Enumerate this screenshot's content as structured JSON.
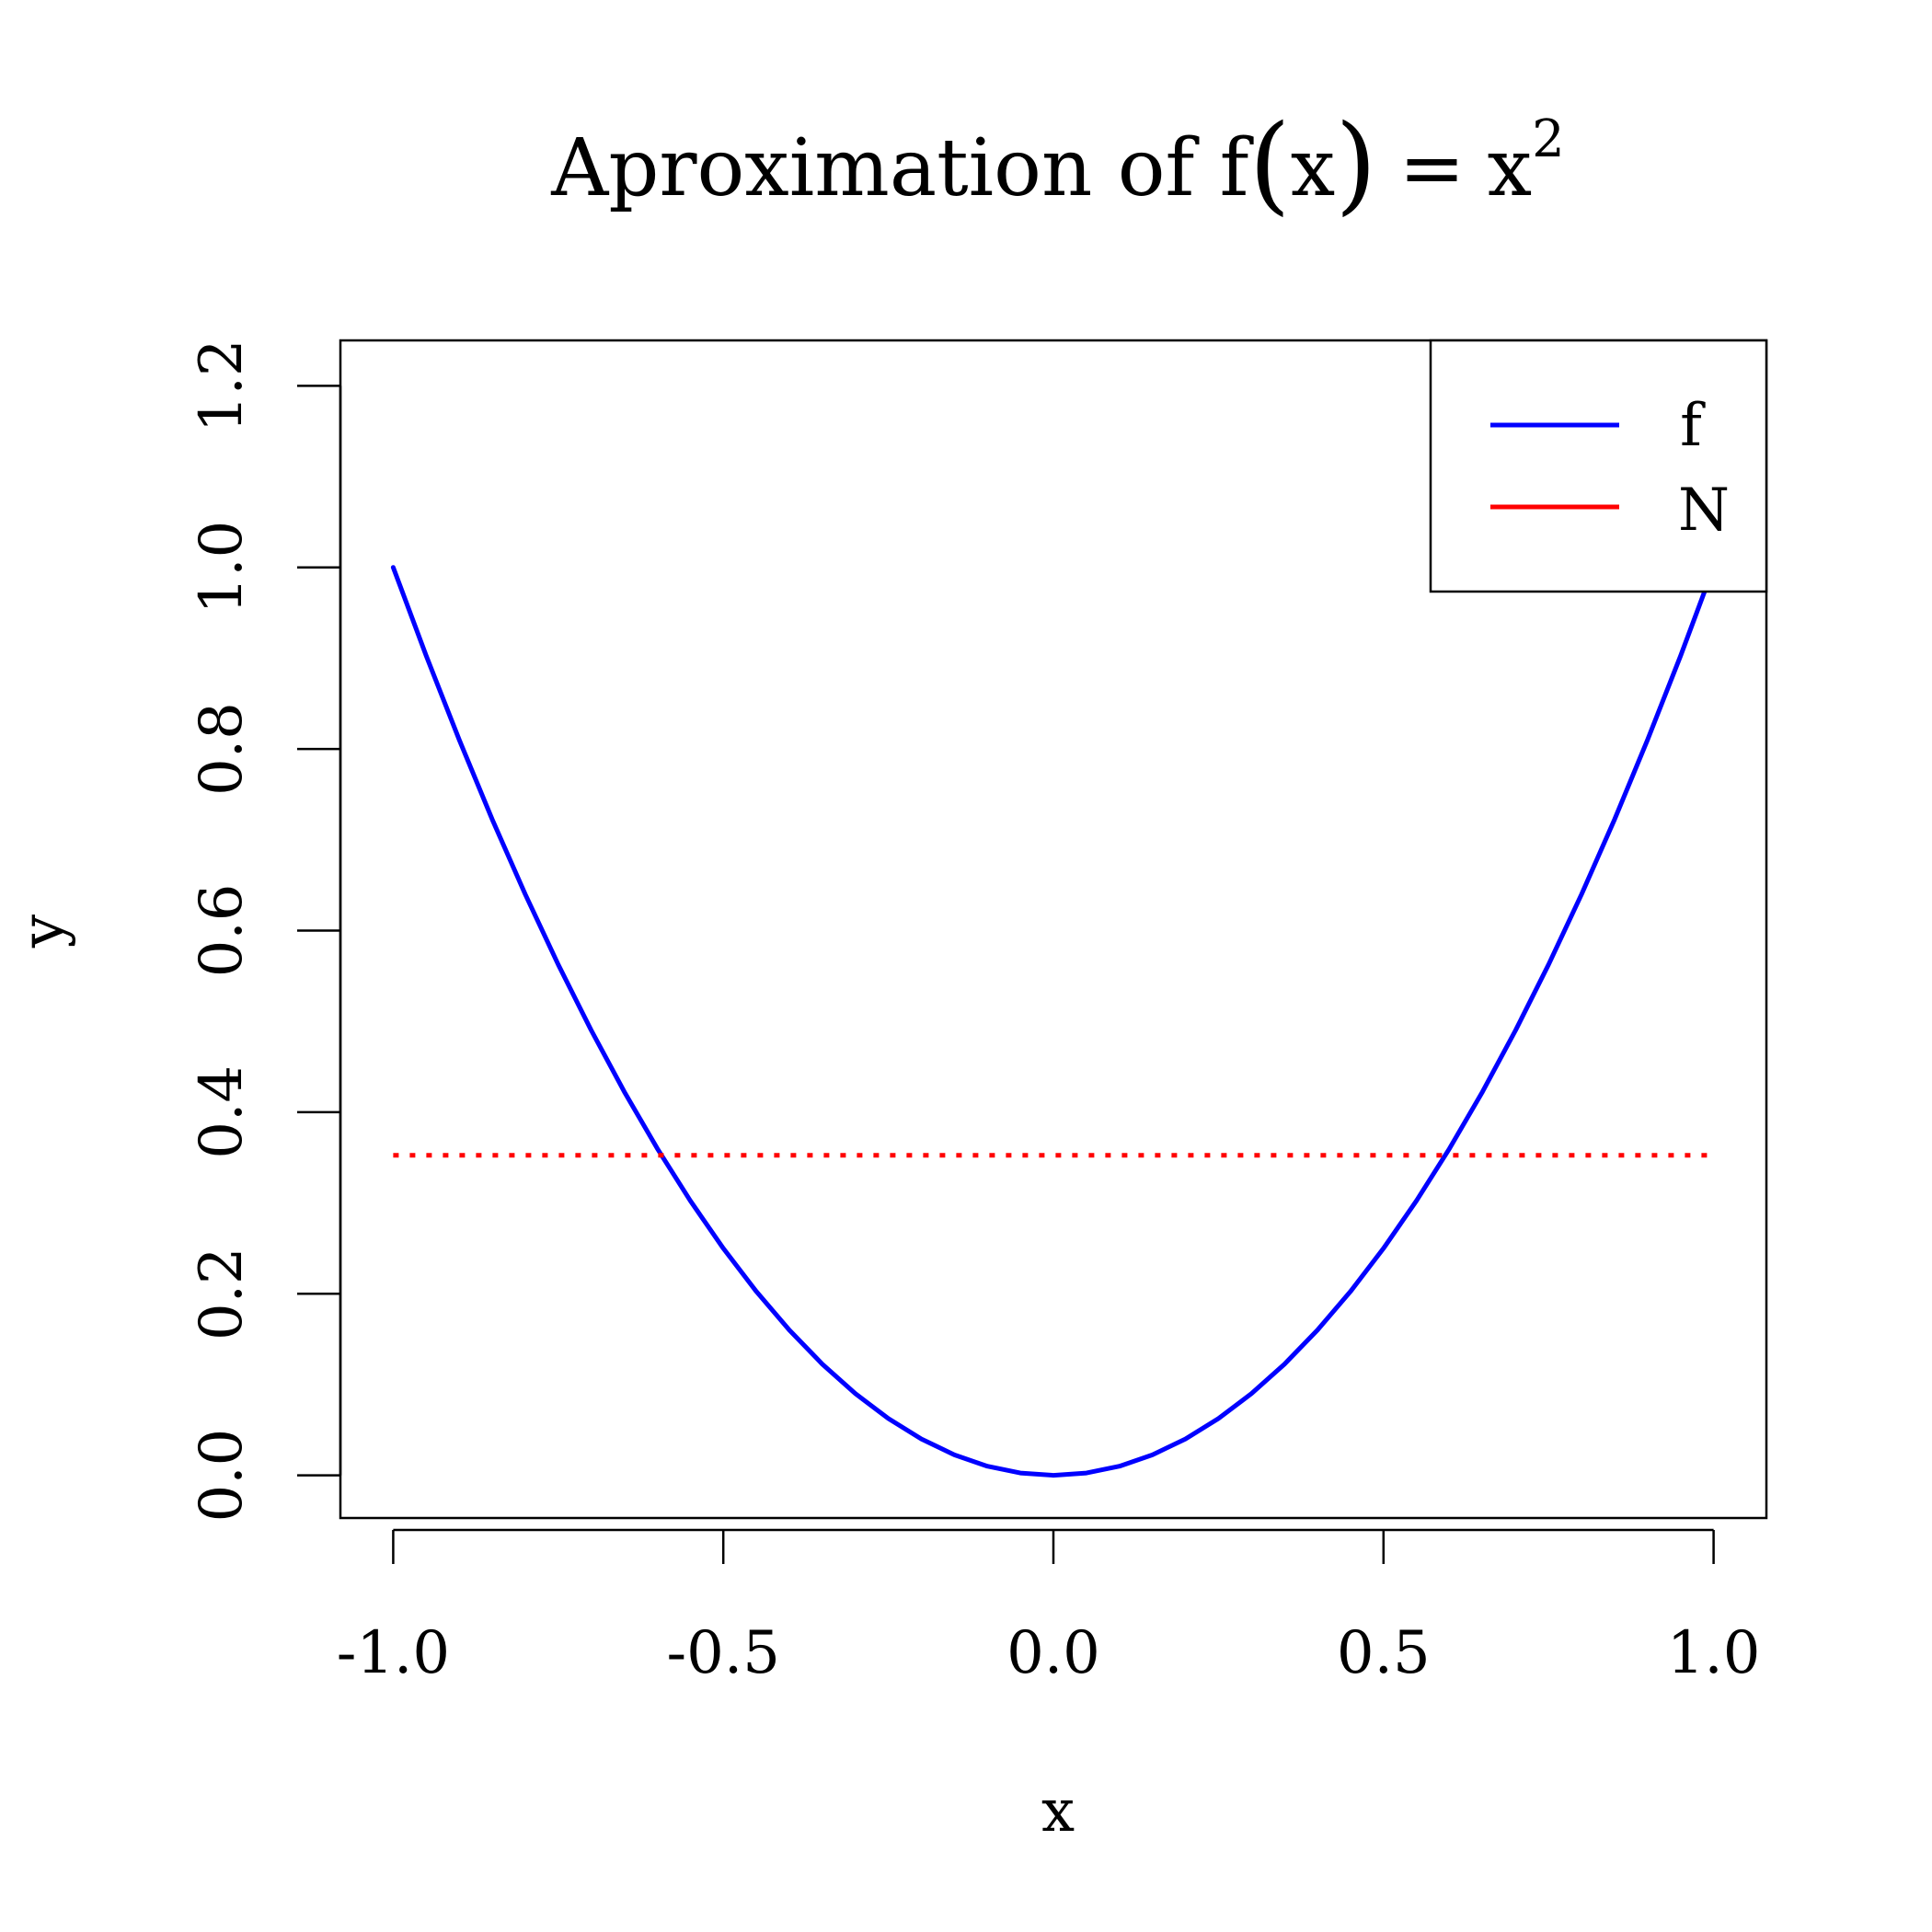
{
  "chart_data": {
    "type": "line",
    "title": {
      "prefix": "Aproximation of f",
      "open_paren": "(",
      "var": "x",
      "close_paren": ")",
      "equals": "=",
      "base": "x",
      "exponent": "2"
    },
    "xlabel": "x",
    "ylabel": "y",
    "xlim": [
      -1.08,
      1.08
    ],
    "ylim": [
      -0.047,
      1.25
    ],
    "x_ticks": [
      -1.0,
      -0.5,
      0.0,
      0.5,
      1.0
    ],
    "x_tick_labels": [
      "-1.0",
      "-0.5",
      "0.0",
      "0.5",
      "1.0"
    ],
    "y_ticks": [
      0.0,
      0.2,
      0.4,
      0.6,
      0.8,
      1.0,
      1.2
    ],
    "y_tick_labels": [
      "0.0",
      "0.2",
      "0.4",
      "0.6",
      "0.8",
      "1.0",
      "1.2"
    ],
    "grid": false,
    "legend": {
      "position": "top-right"
    },
    "series": [
      {
        "name": "f",
        "color": "#0000ff",
        "style": "solid",
        "x": [
          -1.0,
          -0.95,
          -0.9,
          -0.85,
          -0.8,
          -0.75,
          -0.7,
          -0.65,
          -0.6,
          -0.55,
          -0.5,
          -0.45,
          -0.4,
          -0.35,
          -0.3,
          -0.25,
          -0.2,
          -0.15,
          -0.1,
          -0.05,
          0.0,
          0.05,
          0.1,
          0.15,
          0.2,
          0.25,
          0.3,
          0.35,
          0.4,
          0.45,
          0.5,
          0.55,
          0.6,
          0.65,
          0.7,
          0.75,
          0.8,
          0.85,
          0.9,
          0.95,
          1.0
        ],
        "y": [
          1.0,
          0.9025,
          0.81,
          0.7225,
          0.64,
          0.5625,
          0.49,
          0.4225,
          0.36,
          0.3025,
          0.25,
          0.2025,
          0.16,
          0.1225,
          0.09,
          0.0625,
          0.04,
          0.0225,
          0.01,
          0.0025,
          0.0,
          0.0025,
          0.01,
          0.0225,
          0.04,
          0.0625,
          0.09,
          0.1225,
          0.16,
          0.2025,
          0.25,
          0.3025,
          0.36,
          0.4225,
          0.49,
          0.5625,
          0.64,
          0.7225,
          0.81,
          0.9025,
          1.0
        ]
      },
      {
        "name": "N",
        "color": "#ff0000",
        "style": "dotted",
        "x": [
          -1.0,
          1.0
        ],
        "y": [
          0.3525,
          0.3525
        ]
      }
    ]
  }
}
